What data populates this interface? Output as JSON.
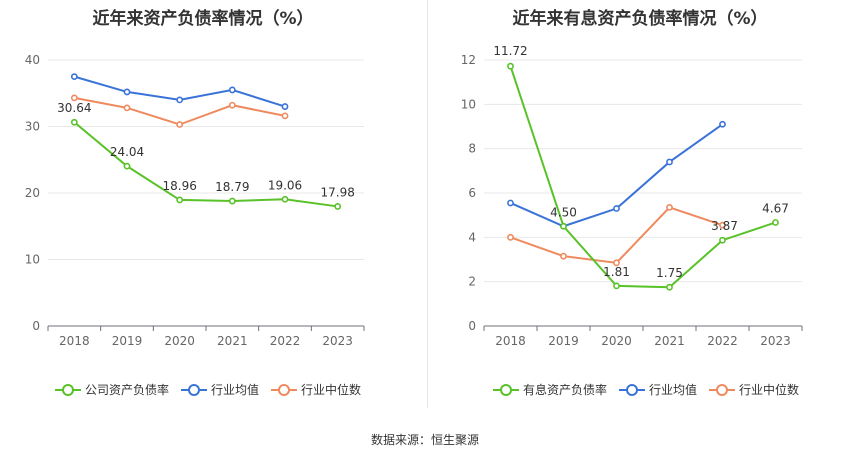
{
  "chart_data": [
    {
      "type": "line",
      "title": "近年来资产负债率情况（%）",
      "categories": [
        "2018",
        "2019",
        "2020",
        "2021",
        "2022",
        "2023"
      ],
      "ylim": [
        0,
        40
      ],
      "yticks": [
        0,
        10,
        20,
        30,
        40
      ],
      "grid": true,
      "legend_position": "bottom",
      "series": [
        {
          "name": "公司资产负债率",
          "color": "#58c228",
          "values": [
            30.64,
            24.04,
            18.96,
            18.79,
            19.06,
            17.98
          ],
          "labels": [
            "30.64",
            "24.04",
            "18.96",
            "18.79",
            "19.06",
            "17.98"
          ]
        },
        {
          "name": "行业均值",
          "color": "#3a73d8",
          "values": [
            37.5,
            35.2,
            34.0,
            35.5,
            33.0,
            null
          ]
        },
        {
          "name": "行业中位数",
          "color": "#ef8a5f",
          "values": [
            34.3,
            32.8,
            30.3,
            33.2,
            31.6,
            null
          ]
        }
      ]
    },
    {
      "type": "line",
      "title": "近年来有息资产负债率情况（%）",
      "categories": [
        "2018",
        "2019",
        "2020",
        "2021",
        "2022",
        "2023"
      ],
      "ylim": [
        0,
        12
      ],
      "yticks": [
        0,
        2,
        4,
        6,
        8,
        10,
        12
      ],
      "grid": true,
      "legend_position": "bottom",
      "series": [
        {
          "name": "有息资产负债率",
          "color": "#58c228",
          "values": [
            11.72,
            4.5,
            1.81,
            1.75,
            3.87,
            4.67
          ],
          "labels": [
            "11.72",
            "4.50",
            "1.81",
            "1.75",
            "3.87",
            "4.67"
          ]
        },
        {
          "name": "行业均值",
          "color": "#3a73d8",
          "values": [
            5.55,
            4.5,
            5.3,
            7.4,
            9.1,
            null
          ]
        },
        {
          "name": "行业中位数",
          "color": "#ef8a5f",
          "values": [
            4.0,
            3.15,
            2.85,
            5.35,
            4.55,
            null
          ]
        }
      ]
    }
  ],
  "footer": {
    "source": "数据来源：恒生聚源"
  }
}
